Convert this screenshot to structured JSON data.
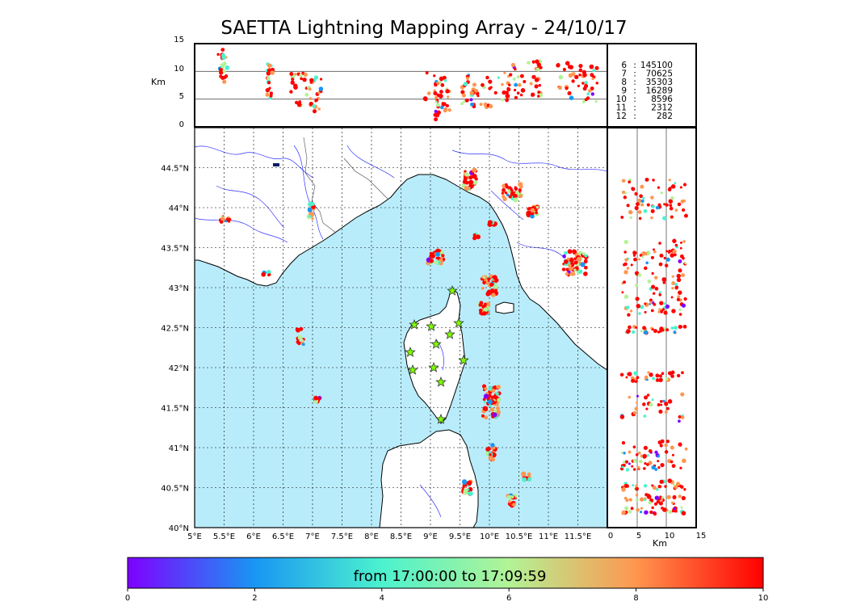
{
  "title": "SAETTA Lightning Mapping Array - 24/10/17",
  "altitude_panel": {
    "unit": "Km",
    "ticks": [
      "0",
      "5",
      "10",
      "15"
    ]
  },
  "side_panel": {
    "unit": "Km",
    "ticks": [
      "0",
      "5",
      "10",
      "15"
    ]
  },
  "lon_labels": [
    "5°E",
    "5.5°E",
    "6°E",
    "6.5°E",
    "7°E",
    "7.5°E",
    "8°E",
    "8.5°E",
    "9°E",
    "9.5°E",
    "10°E",
    "10.5°E",
    "11°E",
    "11.5°E"
  ],
  "lat_labels": [
    "40°N",
    "40.5°N",
    "41°N",
    "41.5°N",
    "42°N",
    "42.5°N",
    "43°N",
    "43.5°N",
    "44°N",
    "44.5°N"
  ],
  "station_counts": [
    {
      "stations": "6",
      "sep": ":",
      "count": "145100",
      "highlight": false
    },
    {
      "stations": "7",
      "sep": ":",
      "count": "70625",
      "highlight": true
    },
    {
      "stations": "8",
      "sep": ":",
      "count": "35303",
      "highlight": false
    },
    {
      "stations": "9",
      "sep": ":",
      "count": "16289",
      "highlight": false
    },
    {
      "stations": "10",
      "sep": ":",
      "count": "8596",
      "highlight": false
    },
    {
      "stations": "11",
      "sep": ":",
      "count": "2312",
      "highlight": false
    },
    {
      "stations": "12",
      "sep": ":",
      "count": "282",
      "highlight": false
    }
  ],
  "colorbar": {
    "caption": "from 17:00:00 to 17:09:59",
    "ticks": [
      "0",
      "2",
      "4",
      "6",
      "8",
      "10"
    ],
    "colors": [
      "#7f00ff",
      "#1996f3",
      "#4cf2ce",
      "#b2f396",
      "#ff964f",
      "#ff0000"
    ]
  },
  "colors": {
    "sea": "#b9ecfa",
    "land": "#ffffff",
    "rivers": "#3333ff",
    "station_marker": "#7cfc00",
    "highlight_text": "#ff0000"
  },
  "map_extent": {
    "lon_min": 5,
    "lon_max": 12,
    "lat_min": 40,
    "lat_max": 45
  }
}
